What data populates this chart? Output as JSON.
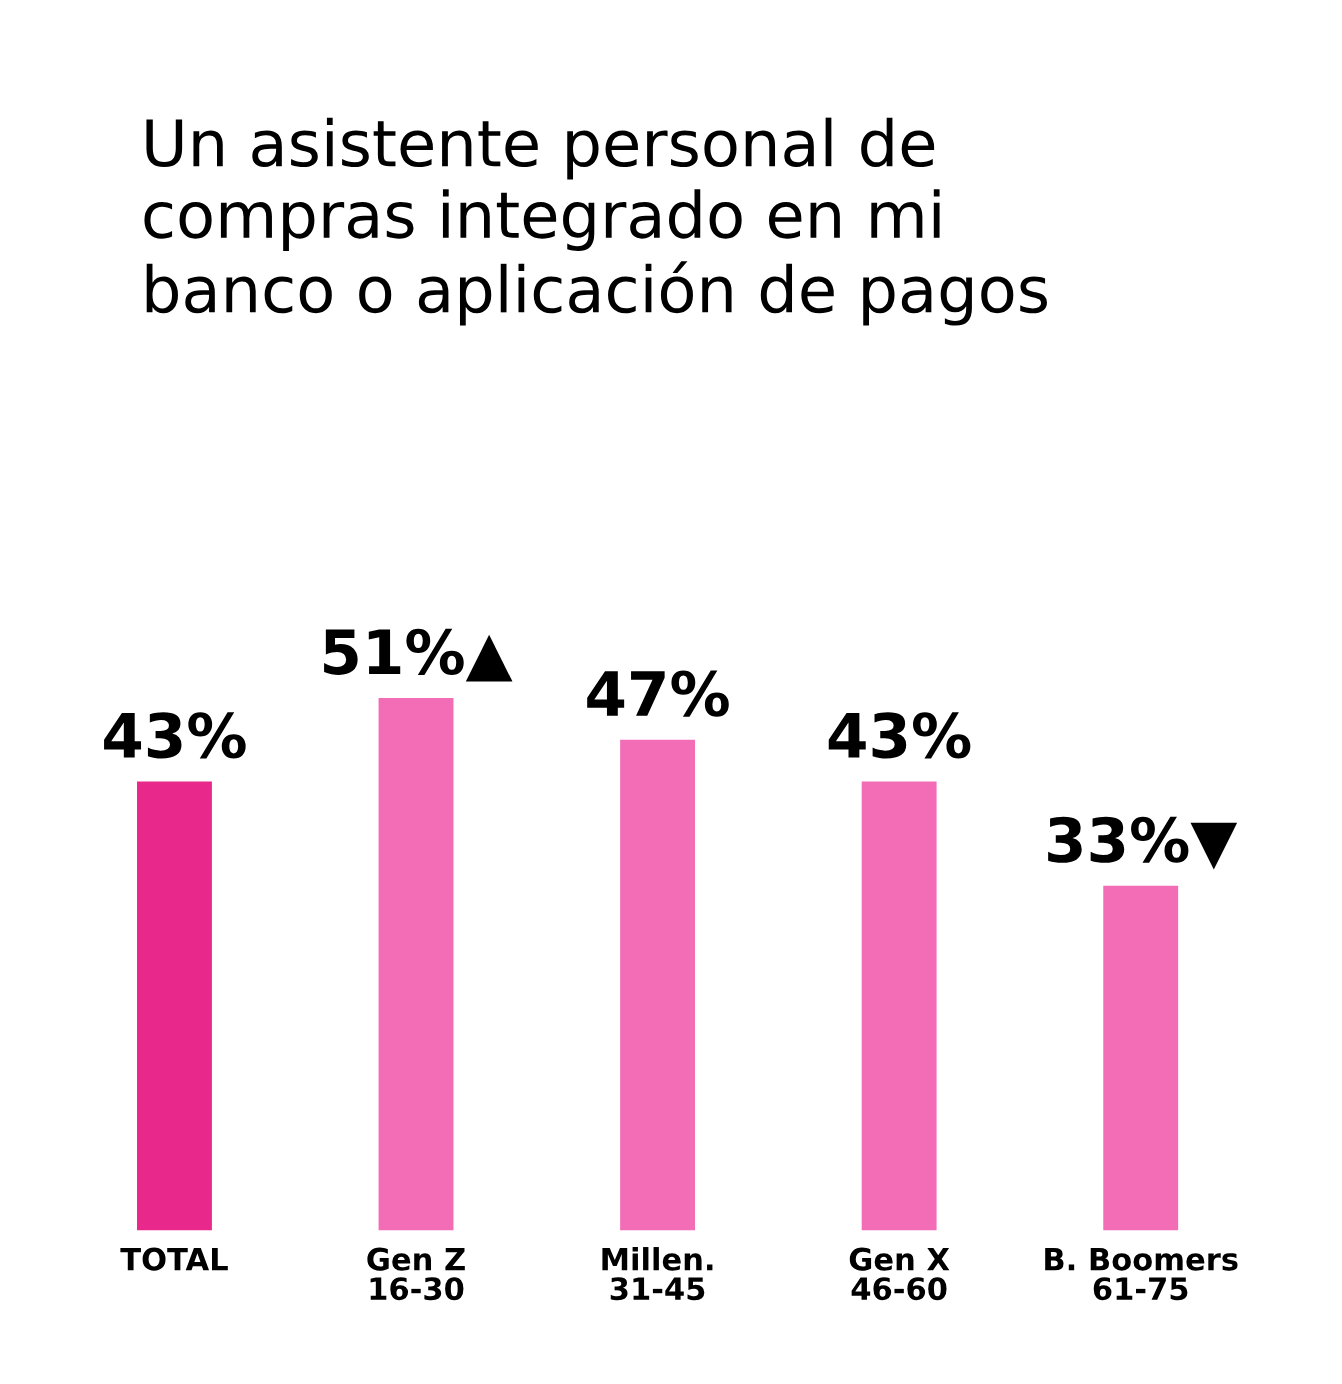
{
  "chart_data": {
    "type": "bar",
    "title": "Un asistente personal de\ncompras integrado en mi\nbanco o aplicación de pagos",
    "categories": [
      "TOTAL",
      "Gen Z\n16-30",
      "Millen.\n31-45",
      "Gen X\n46-60",
      "B. Boomers\n61-75"
    ],
    "values": [
      43,
      51,
      47,
      43,
      33
    ],
    "colors": [
      "#e8288a",
      "#f26cb6",
      "#f26cb6",
      "#f26cb6",
      "#f26cb6"
    ],
    "value_labels": [
      "43%",
      "51%▲",
      "47%",
      "43%",
      "33%▼"
    ],
    "grid": false,
    "legend": false
  }
}
